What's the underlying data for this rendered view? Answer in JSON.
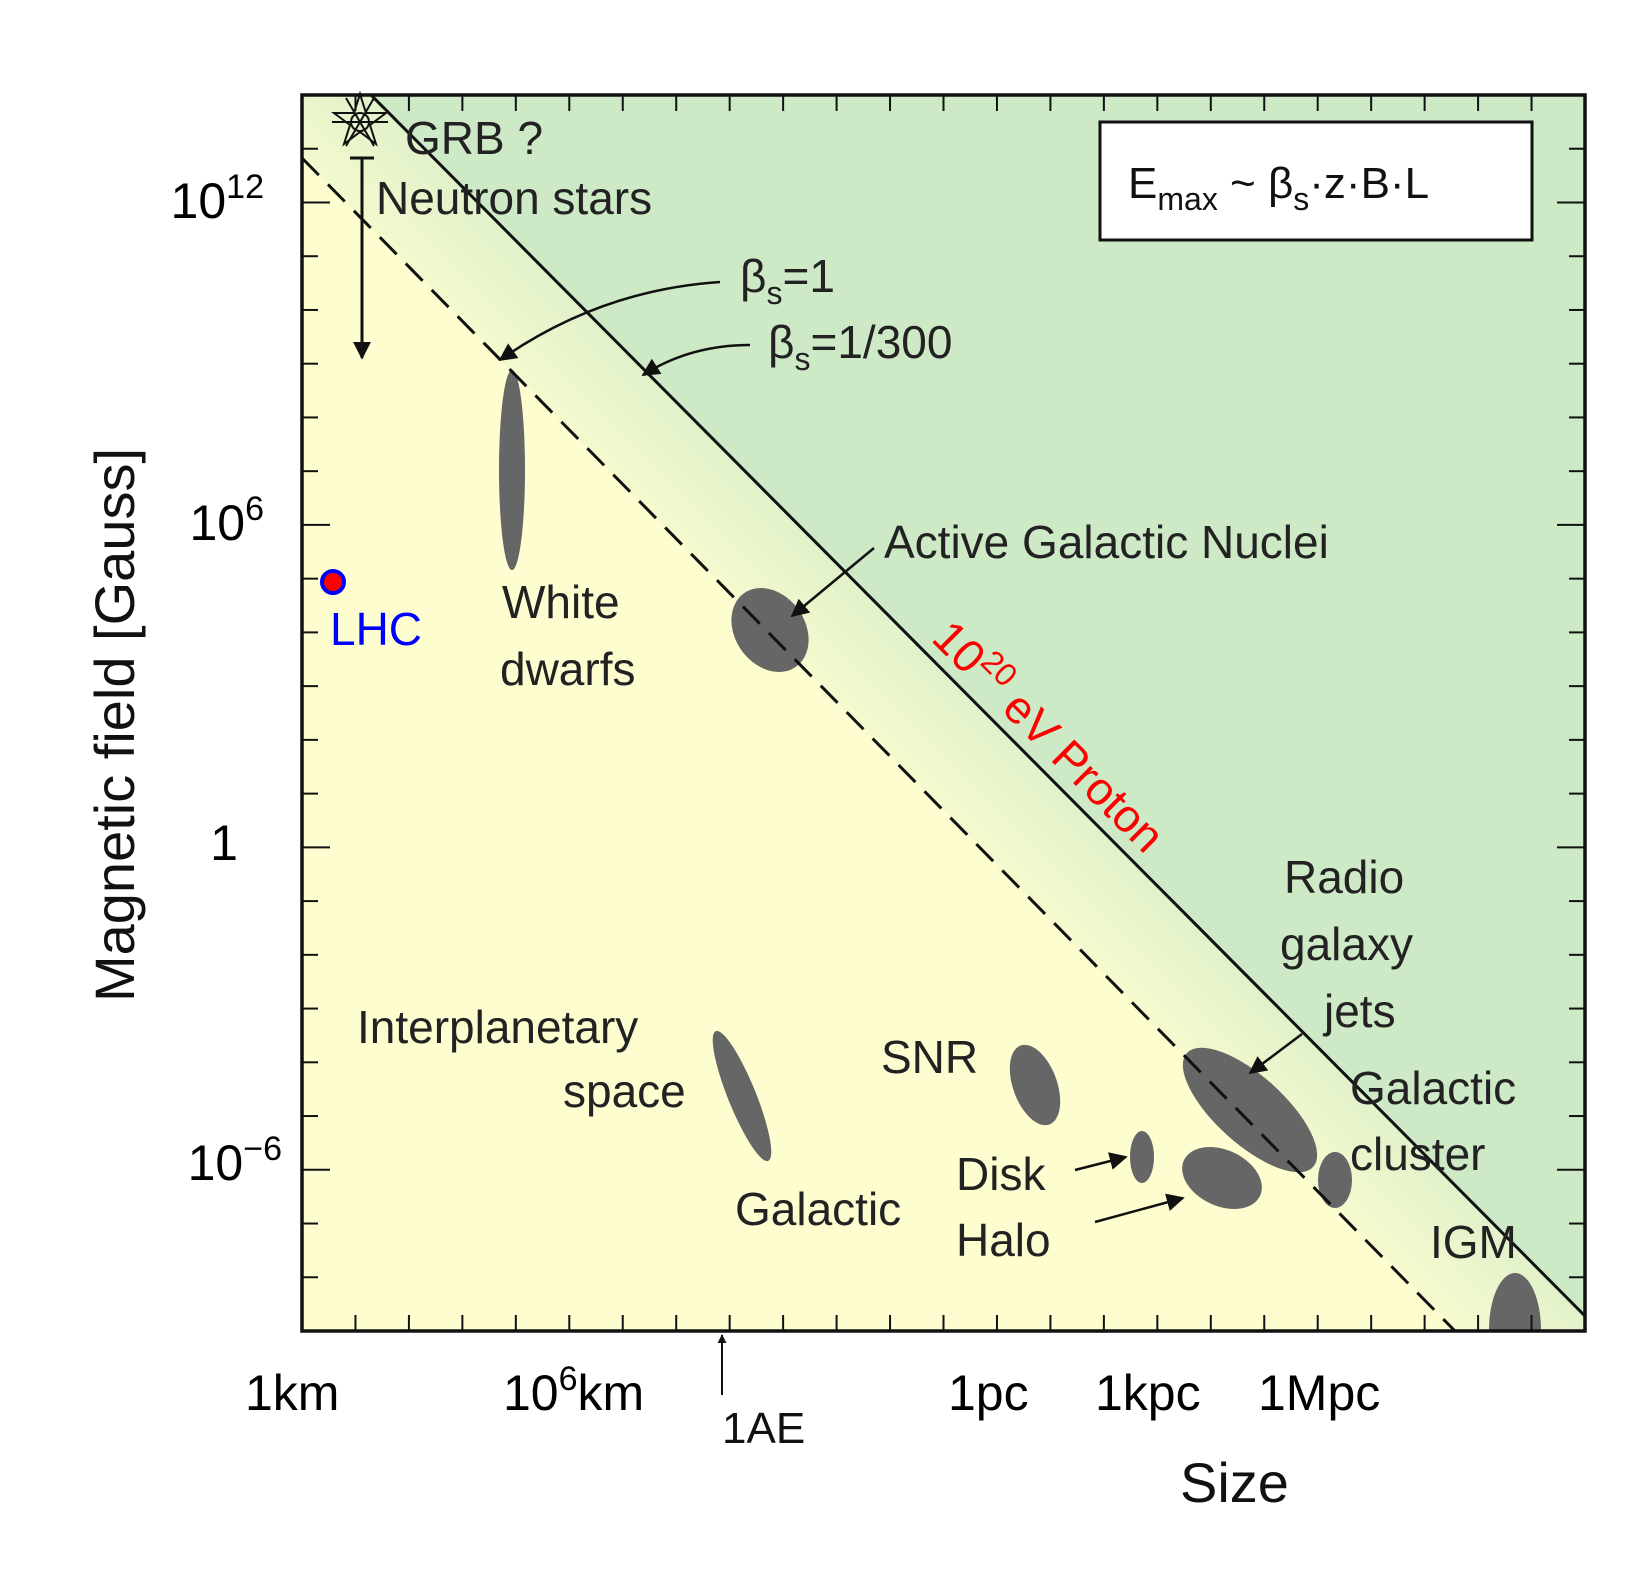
{
  "chart_data": {
    "type": "scatter",
    "title": "",
    "xlabel": "Size",
    "ylabel": "Magnetic field [Gauss]",
    "x_scale": "log",
    "y_scale": "log",
    "ylim_log10": [
      -9,
      14
    ],
    "y_ticks": [
      {
        "label_base": "10",
        "label_exp": "12",
        "log10": 12
      },
      {
        "label_base": "10",
        "label_exp": "6",
        "log10": 6
      },
      {
        "label_base": "1",
        "label_exp": "",
        "log10": 0
      },
      {
        "label_base": "10",
        "label_exp": "−6",
        "log10": -6
      }
    ],
    "x_ticks": [
      {
        "label_base": "1km",
        "label_exp": ""
      },
      {
        "label_base": "10",
        "label_exp": "6",
        "label_suffix": "km"
      },
      {
        "label_base": "1pc",
        "label_exp": ""
      },
      {
        "label_base": "1kpc",
        "label_exp": ""
      },
      {
        "label_base": "1Mpc",
        "label_exp": ""
      }
    ],
    "annotation_1AE": "1AE",
    "formula": {
      "E": "E",
      "sub_max": "max",
      "tilde": " ~ ",
      "beta": "β",
      "sub_s": "s",
      "rest": "·z·B·L"
    },
    "lines": [
      {
        "name": "β_s=1",
        "style": "dashed",
        "label_beta": "β",
        "label_sub": "s",
        "label_rest": "=1"
      },
      {
        "name": "β_s=1/300",
        "style": "solid",
        "label_beta": "β",
        "label_sub": "s",
        "label_rest": "=1/300"
      }
    ],
    "proton_label": {
      "base": "10",
      "exp": "20",
      "rest": " eV Proton"
    },
    "regions": {
      "below": "#fdfdd0",
      "above": "#cde9c6"
    },
    "sources": [
      {
        "name": "Neutron stars",
        "label": [
          "Neutron stars"
        ]
      },
      {
        "name": "GRB ?",
        "label": [
          "GRB ?"
        ]
      },
      {
        "name": "White dwarfs",
        "label": [
          "White",
          "dwarfs"
        ]
      },
      {
        "name": "Active Galactic Nuclei",
        "label": [
          "Active Galactic Nuclei"
        ]
      },
      {
        "name": "LHC",
        "label": [
          "LHC"
        ],
        "color": "#0000ff"
      },
      {
        "name": "Interplanetary space",
        "label": [
          "Interplanetary",
          "space"
        ]
      },
      {
        "name": "SNR",
        "label": [
          "SNR"
        ]
      },
      {
        "name": "Galactic Disk",
        "label": [
          "Disk"
        ]
      },
      {
        "name": "Galactic Halo",
        "label": [
          "Halo"
        ]
      },
      {
        "name": "Galactic",
        "label": [
          "Galactic"
        ]
      },
      {
        "name": "Radio galaxy jets",
        "label": [
          "Radio",
          "galaxy",
          "jets"
        ]
      },
      {
        "name": "Galactic cluster",
        "label": [
          "Galactic",
          "cluster"
        ]
      },
      {
        "name": "IGM",
        "label": [
          "IGM"
        ]
      }
    ],
    "blob_color": "#666666"
  }
}
